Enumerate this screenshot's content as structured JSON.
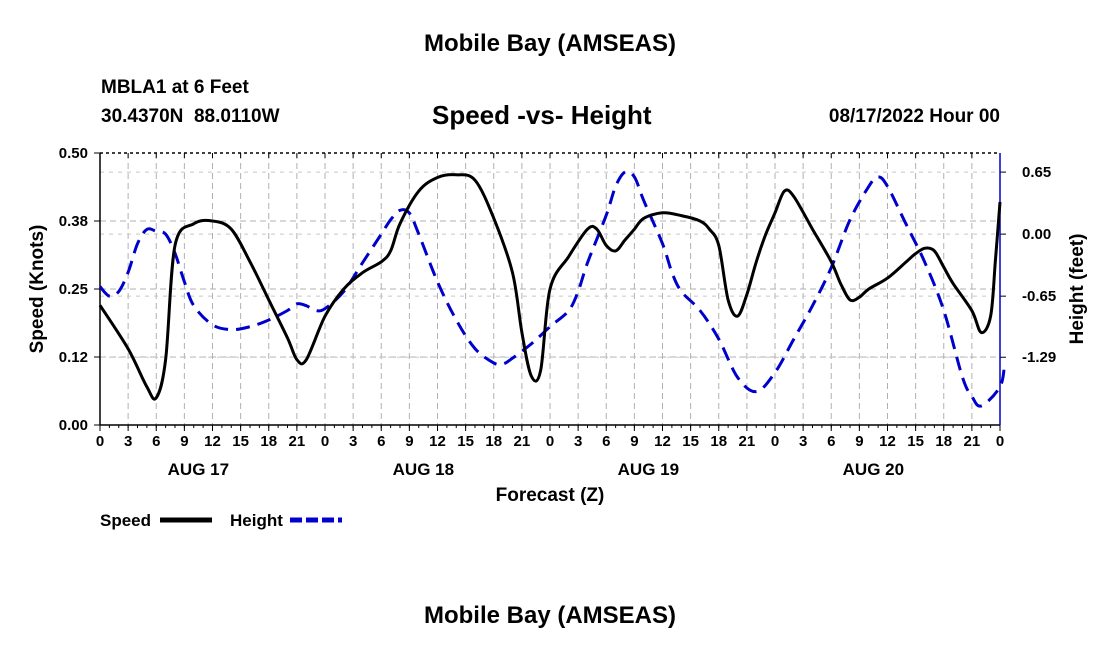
{
  "header": {
    "title": "Mobile Bay (AMSEAS)",
    "station": "MBLA1 at 6 Feet",
    "coords": "30.4370N  88.0110W",
    "datetime": "08/17/2022 Hour 00",
    "footer_title": "Mobile Bay (AMSEAS)"
  },
  "chart_data": {
    "type": "line",
    "title": "Speed -vs- Height",
    "xlabel": "Forecast (Z)",
    "ylabel_left": "Speed (Knots)",
    "ylabel_right": "Height (feet)",
    "x_range_hours": [
      0,
      96
    ],
    "x_tick_labels": [
      "0",
      "3",
      "6",
      "9",
      "12",
      "15",
      "18",
      "21",
      "0",
      "3",
      "6",
      "9",
      "12",
      "15",
      "18",
      "21",
      "0",
      "3",
      "6",
      "9",
      "12",
      "15",
      "18",
      "21",
      "0",
      "3",
      "6",
      "9",
      "12",
      "15",
      "18",
      "21",
      "0"
    ],
    "day_labels": [
      {
        "label": "AUG 17",
        "hour": 9
      },
      {
        "label": "AUG 18",
        "hour": 33
      },
      {
        "label": "AUG 19",
        "hour": 57
      },
      {
        "label": "AUG 20",
        "hour": 81
      }
    ],
    "y_left": {
      "range": [
        0,
        0.5
      ],
      "ticks": [
        "0.00",
        "0.12",
        "0.25",
        "0.38",
        "0.50"
      ],
      "tick_values": [
        0,
        0.125,
        0.25,
        0.375,
        0.5
      ]
    },
    "y_right": {
      "range": [
        -2.0,
        0.85
      ],
      "ticks": [
        "0.65",
        "0.00",
        "-0.65",
        "-1.29"
      ],
      "tick_values": [
        0.65,
        0.0,
        -0.65,
        -1.29
      ]
    },
    "grid": true,
    "legend_position": "bottom-left",
    "series": [
      {
        "name": "Speed",
        "axis": "left",
        "color": "#000000",
        "style": "solid",
        "points": [
          [
            0,
            0.22
          ],
          [
            3,
            0.14
          ],
          [
            5,
            0.07
          ],
          [
            6,
            0.05
          ],
          [
            7,
            0.12
          ],
          [
            8,
            0.33
          ],
          [
            10,
            0.37
          ],
          [
            12,
            0.375
          ],
          [
            14,
            0.36
          ],
          [
            16,
            0.3
          ],
          [
            18,
            0.23
          ],
          [
            20,
            0.16
          ],
          [
            21,
            0.12
          ],
          [
            22,
            0.12
          ],
          [
            24,
            0.2
          ],
          [
            26,
            0.25
          ],
          [
            28,
            0.28
          ],
          [
            30,
            0.3
          ],
          [
            31,
            0.32
          ],
          [
            32,
            0.37
          ],
          [
            34,
            0.43
          ],
          [
            36,
            0.455
          ],
          [
            38,
            0.46
          ],
          [
            40,
            0.45
          ],
          [
            42,
            0.38
          ],
          [
            44,
            0.28
          ],
          [
            45,
            0.17
          ],
          [
            46,
            0.09
          ],
          [
            47,
            0.1
          ],
          [
            48,
            0.25
          ],
          [
            50,
            0.31
          ],
          [
            52,
            0.36
          ],
          [
            53,
            0.36
          ],
          [
            54,
            0.33
          ],
          [
            55,
            0.32
          ],
          [
            56,
            0.34
          ],
          [
            57,
            0.36
          ],
          [
            58,
            0.38
          ],
          [
            60,
            0.39
          ],
          [
            62,
            0.385
          ],
          [
            64,
            0.375
          ],
          [
            65,
            0.36
          ],
          [
            66,
            0.33
          ],
          [
            67,
            0.23
          ],
          [
            68,
            0.2
          ],
          [
            69,
            0.24
          ],
          [
            70,
            0.3
          ],
          [
            71,
            0.35
          ],
          [
            72,
            0.39
          ],
          [
            73,
            0.43
          ],
          [
            74,
            0.42
          ],
          [
            76,
            0.36
          ],
          [
            78,
            0.3
          ],
          [
            79,
            0.26
          ],
          [
            80,
            0.23
          ],
          [
            81,
            0.235
          ],
          [
            82,
            0.25
          ],
          [
            84,
            0.27
          ],
          [
            86,
            0.3
          ],
          [
            87,
            0.315
          ],
          [
            88,
            0.325
          ],
          [
            89,
            0.32
          ],
          [
            90,
            0.29
          ],
          [
            91,
            0.26
          ],
          [
            93,
            0.21
          ],
          [
            94,
            0.17
          ],
          [
            95,
            0.2
          ],
          [
            95.5,
            0.3
          ],
          [
            96,
            0.41
          ]
        ]
      },
      {
        "name": "Height",
        "axis": "right",
        "color": "#0000CC",
        "style": "dashed",
        "points": [
          [
            0,
            -0.55
          ],
          [
            1,
            -0.65
          ],
          [
            2,
            -0.6
          ],
          [
            3,
            -0.4
          ],
          [
            4,
            -0.1
          ],
          [
            5,
            0.05
          ],
          [
            6,
            0.03
          ],
          [
            7,
            0.0
          ],
          [
            8,
            -0.2
          ],
          [
            9,
            -0.5
          ],
          [
            10,
            -0.75
          ],
          [
            12,
            -0.95
          ],
          [
            14,
            -1.0
          ],
          [
            16,
            -0.97
          ],
          [
            18,
            -0.9
          ],
          [
            20,
            -0.8
          ],
          [
            21,
            -0.73
          ],
          [
            22,
            -0.75
          ],
          [
            23,
            -0.8
          ],
          [
            24,
            -0.78
          ],
          [
            26,
            -0.6
          ],
          [
            28,
            -0.3
          ],
          [
            30,
            0.0
          ],
          [
            31,
            0.15
          ],
          [
            32,
            0.25
          ],
          [
            33,
            0.22
          ],
          [
            34,
            0.0
          ],
          [
            36,
            -0.5
          ],
          [
            38,
            -0.9
          ],
          [
            40,
            -1.2
          ],
          [
            42,
            -1.35
          ],
          [
            43,
            -1.36
          ],
          [
            44,
            -1.3
          ],
          [
            46,
            -1.15
          ],
          [
            48,
            -0.97
          ],
          [
            50,
            -0.8
          ],
          [
            51,
            -0.6
          ],
          [
            52,
            -0.3
          ],
          [
            54,
            0.2
          ],
          [
            55,
            0.5
          ],
          [
            56,
            0.65
          ],
          [
            57,
            0.6
          ],
          [
            58,
            0.35
          ],
          [
            60,
            -0.1
          ],
          [
            61,
            -0.4
          ],
          [
            62,
            -0.6
          ],
          [
            64,
            -0.8
          ],
          [
            66,
            -1.1
          ],
          [
            68,
            -1.5
          ],
          [
            70,
            -1.65
          ],
          [
            72,
            -1.45
          ],
          [
            74,
            -1.1
          ],
          [
            76,
            -0.75
          ],
          [
            78,
            -0.35
          ],
          [
            80,
            0.15
          ],
          [
            82,
            0.5
          ],
          [
            83,
            0.6
          ],
          [
            84,
            0.5
          ],
          [
            86,
            0.1
          ],
          [
            88,
            -0.3
          ],
          [
            90,
            -0.8
          ],
          [
            92,
            -1.5
          ],
          [
            93,
            -1.7
          ],
          [
            94,
            -1.8
          ],
          [
            96,
            -1.6
          ],
          [
            96.5,
            -1.35
          ]
        ]
      }
    ]
  }
}
